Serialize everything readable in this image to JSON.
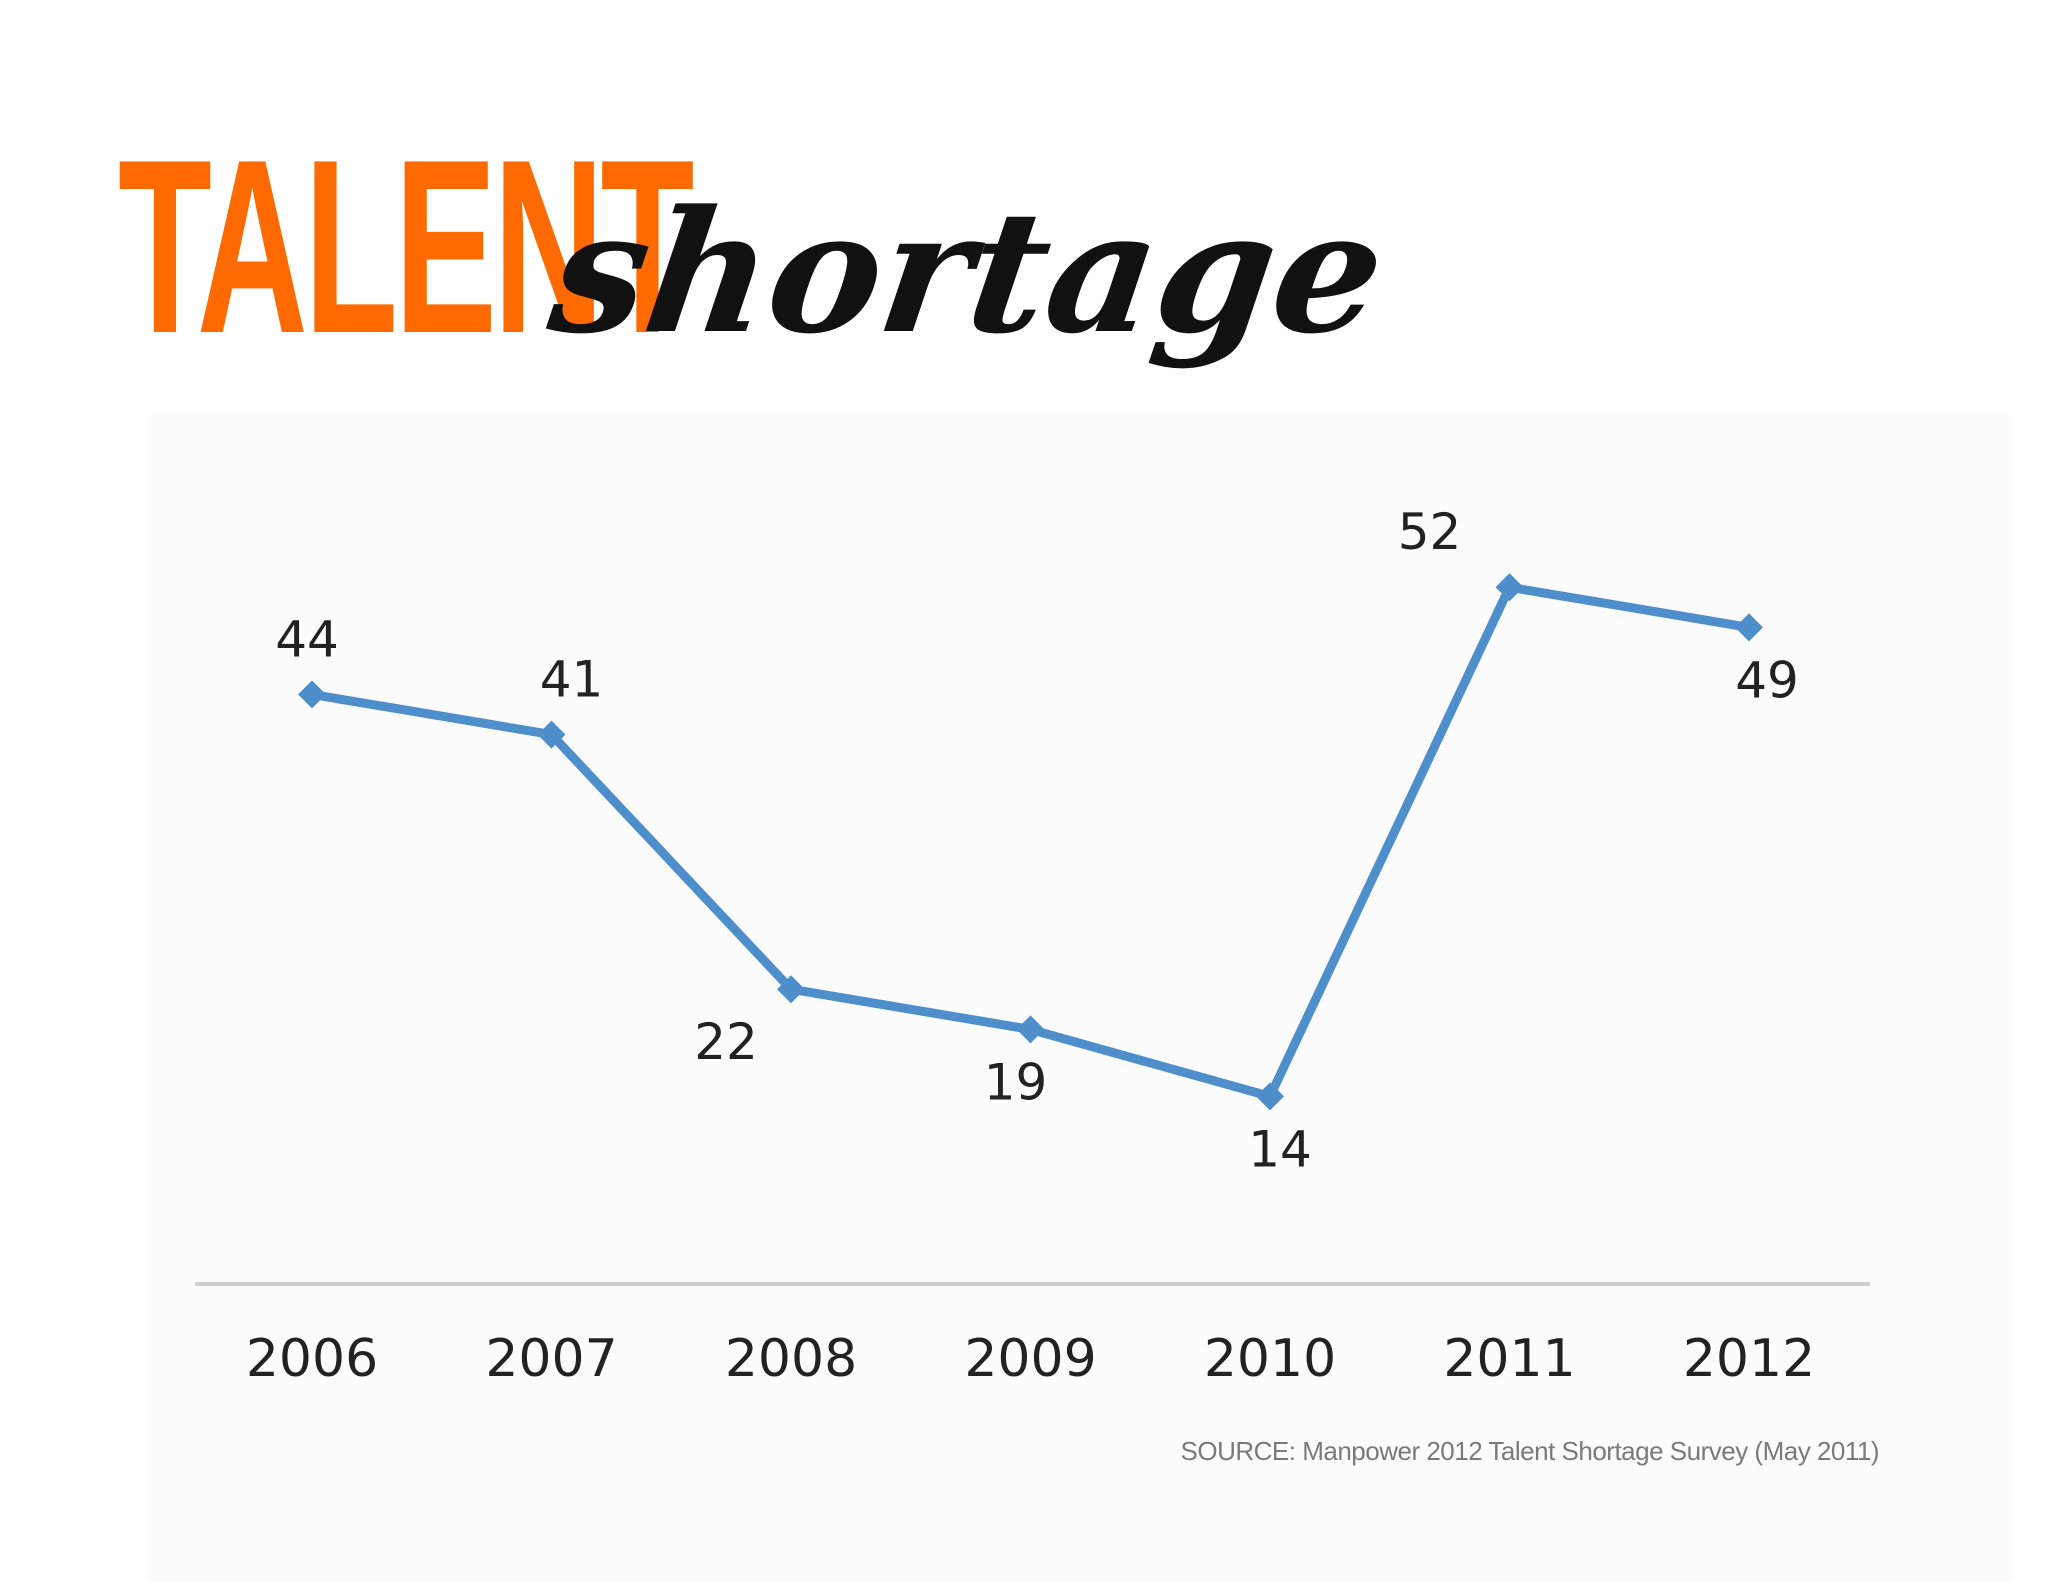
{
  "header": {
    "title_main": "TALENT",
    "title_script": "shortage"
  },
  "colors": {
    "title_accent": "#ff6a00",
    "series_line": "#4e8fcb",
    "axis_line": "#cfcfcf",
    "text_dark": "#222222",
    "source_text": "#7a7a7a"
  },
  "chart_data": {
    "type": "line",
    "title": "",
    "xlabel": "",
    "ylabel": "",
    "categories": [
      "2006",
      "2007",
      "2008",
      "2009",
      "2010",
      "2011",
      "2012"
    ],
    "series": [
      {
        "values": [
          44,
          41,
          22,
          19,
          14,
          52,
          49
        ],
        "marker": "diamond"
      }
    ],
    "data_labels": [
      "44",
      "41",
      "22",
      "19",
      "14",
      "52",
      "49"
    ],
    "data_label_positions": [
      "above",
      "above",
      "below",
      "below",
      "below",
      "above",
      "below"
    ],
    "ylim": [
      0,
      60
    ],
    "grid": false,
    "y_axis_visible": false,
    "legend": "none"
  },
  "footer": {
    "source": "SOURCE: Manpower 2012 Talent Shortage Survey (May 2011)"
  }
}
